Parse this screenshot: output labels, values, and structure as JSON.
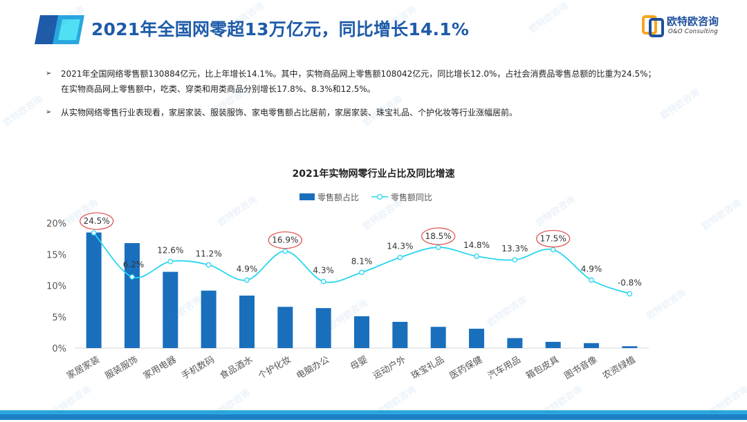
{
  "page": {
    "title": "2021年全国网零超13万亿元，同比增长14.1%",
    "logo": {
      "name": "欧特欧咨询",
      "sub": "O&O Consulting"
    },
    "bullets": [
      {
        "marker": "➢",
        "lines": [
          "2021年全国网络零售额130884亿元，比上年增长14.1%。其中，实物商品网上零售额108042亿元，同比增长12.0%，占社会消费品零售总额的比重为24.5%；",
          "在实物商品网上零售额中，吃类、穿类和用类商品分别增长17.8%、8.3%和12.5%。"
        ]
      },
      {
        "marker": "➢",
        "lines": [
          "从实物网络零售行业表现看，家居家装、服装服饰、家电零售额占比居前，家居家装、珠宝礼品、个护化妆等行业涨幅居前。"
        ]
      }
    ],
    "watermark": "欧特欧咨询",
    "colors": {
      "title": "#1e5aa8",
      "bar": "#1a6fbd",
      "line": "#27d5f0",
      "highlight": "#e04a4a",
      "accent": "#2aa7de"
    }
  },
  "chart_data": {
    "type": "bar",
    "title": "2021年实物网零行业占比及同比增速",
    "categories": [
      "家居家装",
      "服装服饰",
      "家用电器",
      "手机数码",
      "食品酒水",
      "个护化妆",
      "电脑办公",
      "母婴",
      "运动户外",
      "珠宝礼品",
      "医药保健",
      "汽车用品",
      "箱包皮具",
      "图书音像",
      "农资绿植"
    ],
    "series": [
      {
        "name": "零售额占比",
        "type": "bar",
        "values": [
          18.5,
          16.8,
          12.2,
          9.2,
          8.4,
          6.6,
          6.4,
          5.1,
          4.2,
          3.4,
          3.1,
          1.6,
          1.0,
          0.8,
          0.3
        ]
      },
      {
        "name": "零售额同比",
        "type": "line",
        "values": [
          24.5,
          6.2,
          12.6,
          11.2,
          4.9,
          16.9,
          4.3,
          8.1,
          14.3,
          18.5,
          14.8,
          13.3,
          17.5,
          4.9,
          -0.8
        ],
        "labels": [
          "24.5%",
          "6.2%",
          "12.6%",
          "11.2%",
          "4.9%",
          "16.9%",
          "4.3%",
          "8.1%",
          "14.3%",
          "18.5%",
          "14.8%",
          "13.3%",
          "17.5%",
          "4.9%",
          "-0.8%"
        ],
        "highlighted": [
          "家居家装",
          "个护化妆",
          "珠宝礼品",
          "箱包皮具"
        ]
      }
    ],
    "yaxis": {
      "ticks": [
        0,
        5,
        10,
        15,
        20
      ],
      "tick_labels": [
        "0%",
        "5%",
        "10%",
        "15%",
        "20%"
      ],
      "ylim": [
        0,
        20
      ]
    },
    "legend": {
      "position": "top-center"
    }
  }
}
